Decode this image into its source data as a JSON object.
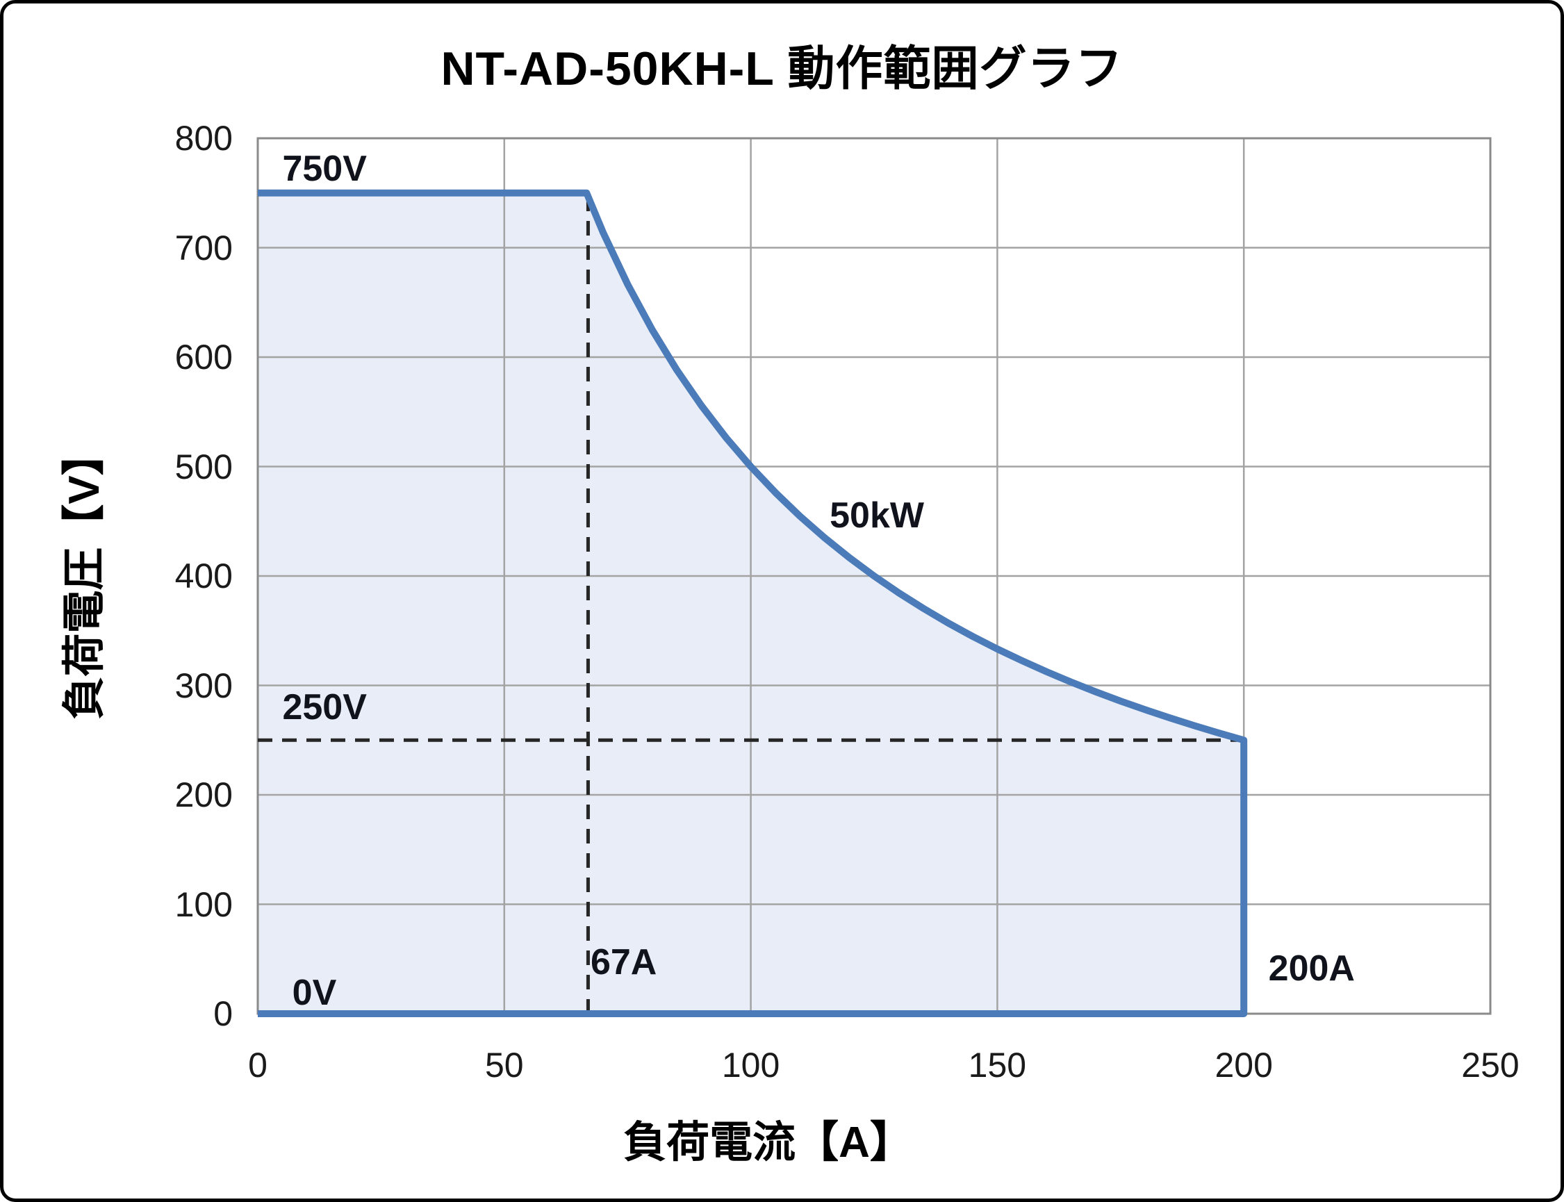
{
  "title": "NT-AD-50KH-L 動作範囲グラフ",
  "colors": {
    "background": "#ffffff",
    "outer_border": "#000000",
    "curve": "#4b7bb8",
    "area_fill": "#e9edf7",
    "gridline": "#a3a3a3",
    "plot_border": "#8a8a8a",
    "dashed_line": "#262626",
    "text": "#1a1a1a"
  },
  "chart_data": {
    "type": "area",
    "title": "NT-AD-50KH-L 動作範囲グラフ",
    "xlabel": "負荷電流【A】",
    "ylabel": "負荷電圧【V】",
    "xlim": [
      0,
      250
    ],
    "ylim": [
      0,
      800
    ],
    "x_ticks": [
      0,
      50,
      100,
      150,
      200,
      250
    ],
    "y_ticks": [
      0,
      100,
      200,
      300,
      400,
      500,
      600,
      700,
      800
    ],
    "grid": true,
    "legend": "none",
    "series": [
      {
        "name": "operating-range-boundary",
        "description": "Operating envelope: 750V max voltage, 50kW constant power curve (V=50000/I), 200A max current",
        "points": [
          [
            0,
            750
          ],
          [
            66.7,
            750
          ],
          [
            70,
            714.3
          ],
          [
            75,
            666.7
          ],
          [
            80,
            625.0
          ],
          [
            85,
            588.2
          ],
          [
            90,
            555.6
          ],
          [
            95,
            526.3
          ],
          [
            100,
            500.0
          ],
          [
            105,
            476.2
          ],
          [
            110,
            454.5
          ],
          [
            115,
            434.8
          ],
          [
            120,
            416.7
          ],
          [
            125,
            400.0
          ],
          [
            130,
            384.6
          ],
          [
            135,
            370.4
          ],
          [
            140,
            357.1
          ],
          [
            145,
            344.8
          ],
          [
            150,
            333.3
          ],
          [
            155,
            322.6
          ],
          [
            160,
            312.5
          ],
          [
            165,
            303.0
          ],
          [
            170,
            294.1
          ],
          [
            175,
            285.7
          ],
          [
            180,
            277.8
          ],
          [
            185,
            270.3
          ],
          [
            190,
            263.2
          ],
          [
            195,
            256.4
          ],
          [
            200,
            250.0
          ],
          [
            200,
            0
          ],
          [
            0,
            0
          ]
        ]
      }
    ],
    "reference_lines": [
      {
        "name": "dashed-250v-line",
        "orientation": "horizontal",
        "value": 250,
        "from": 0,
        "to": 200,
        "style": "dashed"
      },
      {
        "name": "dashed-67a-line",
        "orientation": "vertical",
        "value": 67,
        "from": 0,
        "to": 750,
        "style": "dashed"
      }
    ],
    "annotations": [
      {
        "text": "750V",
        "x": 5,
        "y": 772
      },
      {
        "text": "250V",
        "x": 5,
        "y": 280
      },
      {
        "text": "0V",
        "x": 7,
        "y": 19
      },
      {
        "text": "67A",
        "x": 67.5,
        "y": 47
      },
      {
        "text": "200A",
        "x": 205,
        "y": 41
      },
      {
        "text": "50kW",
        "x": 116,
        "y": 455
      }
    ]
  }
}
